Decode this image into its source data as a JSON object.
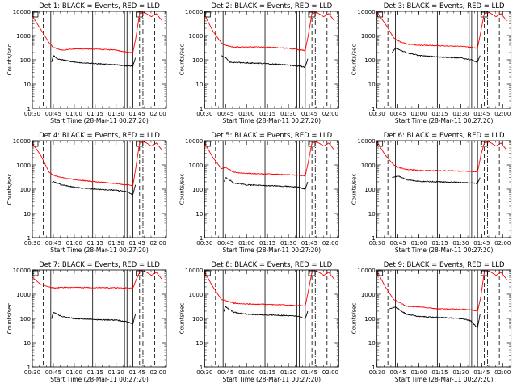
{
  "chart_data": [
    {
      "type": "line",
      "title": "Det 1:  BLACK = Events, RED = LLD",
      "series_names": [
        "BLACK = Events",
        "RED = LLD"
      ],
      "events": [
        [
          0.5,
          null
        ],
        [
          0.7,
          null
        ],
        [
          0.73,
          80
        ],
        [
          0.75,
          150
        ],
        [
          0.8,
          110
        ],
        [
          1.0,
          80
        ],
        [
          1.25,
          70
        ],
        [
          1.5,
          62
        ],
        [
          1.62,
          55
        ],
        [
          1.7,
          55
        ],
        [
          1.73,
          120
        ]
      ],
      "lld": [
        [
          0.5,
          6500
        ],
        [
          0.6,
          1800
        ],
        [
          0.7,
          500
        ],
        [
          0.75,
          320
        ],
        [
          0.85,
          250
        ],
        [
          1.0,
          280
        ],
        [
          1.25,
          280
        ],
        [
          1.5,
          250
        ],
        [
          1.62,
          210
        ],
        [
          1.7,
          200
        ],
        [
          1.74,
          1000
        ],
        [
          1.78,
          8000
        ],
        [
          1.84,
          9000
        ],
        [
          1.92,
          6000
        ],
        [
          1.98,
          8000
        ],
        [
          2.05,
          4000
        ]
      ]
    },
    {
      "type": "line",
      "title": "Det 2:  BLACK = Events, RED = LLD",
      "series_names": [
        "BLACK = Events",
        "RED = LLD"
      ],
      "events": [
        [
          0.5,
          null
        ],
        [
          0.68,
          null
        ],
        [
          0.7,
          150
        ],
        [
          0.75,
          120
        ],
        [
          0.8,
          80
        ],
        [
          1.0,
          75
        ],
        [
          1.25,
          70
        ],
        [
          1.5,
          60
        ],
        [
          1.62,
          55
        ],
        [
          1.7,
          50
        ],
        [
          1.73,
          110
        ]
      ],
      "lld": [
        [
          0.5,
          7000
        ],
        [
          0.6,
          1500
        ],
        [
          0.7,
          500
        ],
        [
          0.75,
          400
        ],
        [
          0.85,
          330
        ],
        [
          1.0,
          340
        ],
        [
          1.25,
          330
        ],
        [
          1.5,
          300
        ],
        [
          1.62,
          260
        ],
        [
          1.7,
          240
        ],
        [
          1.74,
          1200
        ],
        [
          1.78,
          8000
        ],
        [
          1.84,
          9000
        ],
        [
          1.92,
          6000
        ],
        [
          1.98,
          8000
        ],
        [
          2.05,
          4000
        ]
      ]
    },
    {
      "type": "line",
      "title": "Det 3:  BLACK = Events, RED = LLD",
      "series_names": [
        "BLACK = Events",
        "RED = LLD"
      ],
      "events": [
        [
          0.5,
          null
        ],
        [
          0.6,
          null
        ],
        [
          0.68,
          200
        ],
        [
          0.72,
          300
        ],
        [
          0.75,
          280
        ],
        [
          0.85,
          200
        ],
        [
          1.0,
          150
        ],
        [
          1.25,
          130
        ],
        [
          1.5,
          120
        ],
        [
          1.62,
          100
        ],
        [
          1.7,
          80
        ],
        [
          1.73,
          150
        ]
      ],
      "lld": [
        [
          0.5,
          9000
        ],
        [
          0.6,
          3000
        ],
        [
          0.7,
          800
        ],
        [
          0.75,
          600
        ],
        [
          0.85,
          450
        ],
        [
          1.0,
          400
        ],
        [
          1.25,
          380
        ],
        [
          1.5,
          360
        ],
        [
          1.62,
          330
        ],
        [
          1.7,
          300
        ],
        [
          1.74,
          1500
        ],
        [
          1.78,
          8000
        ],
        [
          1.84,
          9000
        ],
        [
          1.92,
          6000
        ],
        [
          1.98,
          8000
        ],
        [
          2.05,
          4000
        ]
      ]
    },
    {
      "type": "line",
      "title": "Det 4:  BLACK = Events, RED = LLD",
      "series_names": [
        "BLACK = Events",
        "RED = LLD"
      ],
      "events": [
        [
          0.5,
          null
        ],
        [
          0.7,
          null
        ],
        [
          0.73,
          180
        ],
        [
          0.75,
          200
        ],
        [
          0.85,
          150
        ],
        [
          1.0,
          120
        ],
        [
          1.25,
          100
        ],
        [
          1.5,
          90
        ],
        [
          1.62,
          80
        ],
        [
          1.7,
          60
        ],
        [
          1.73,
          150
        ]
      ],
      "lld": [
        [
          0.5,
          8000
        ],
        [
          0.6,
          2500
        ],
        [
          0.7,
          500
        ],
        [
          0.75,
          380
        ],
        [
          0.85,
          300
        ],
        [
          1.0,
          250
        ],
        [
          1.25,
          200
        ],
        [
          1.5,
          170
        ],
        [
          1.62,
          150
        ],
        [
          1.7,
          140
        ],
        [
          1.74,
          1000
        ],
        [
          1.78,
          8000
        ],
        [
          1.84,
          9000
        ],
        [
          1.92,
          6000
        ],
        [
          1.98,
          8000
        ],
        [
          2.05,
          4000
        ]
      ]
    },
    {
      "type": "line",
      "title": "Det 5:  BLACK = Events, RED = LLD",
      "series_names": [
        "BLACK = Events",
        "RED = LLD"
      ],
      "events": [
        [
          0.5,
          null
        ],
        [
          0.7,
          null
        ],
        [
          0.73,
          200
        ],
        [
          0.75,
          300
        ],
        [
          0.85,
          180
        ],
        [
          1.0,
          150
        ],
        [
          1.25,
          140
        ],
        [
          1.5,
          130
        ],
        [
          1.62,
          120
        ],
        [
          1.7,
          100
        ],
        [
          1.73,
          200
        ]
      ],
      "lld": [
        [
          0.5,
          8000
        ],
        [
          0.6,
          2000
        ],
        [
          0.7,
          700
        ],
        [
          0.75,
          800
        ],
        [
          0.85,
          500
        ],
        [
          1.0,
          450
        ],
        [
          1.25,
          420
        ],
        [
          1.5,
          400
        ],
        [
          1.62,
          370
        ],
        [
          1.7,
          350
        ],
        [
          1.74,
          1500
        ],
        [
          1.78,
          8000
        ],
        [
          1.84,
          9000
        ],
        [
          1.92,
          6000
        ],
        [
          1.98,
          8000
        ],
        [
          2.05,
          4000
        ]
      ]
    },
    {
      "type": "line",
      "title": "Det 6:  BLACK = Events, RED = LLD",
      "series_names": [
        "BLACK = Events",
        "RED = LLD"
      ],
      "events": [
        [
          0.5,
          null
        ],
        [
          0.65,
          null
        ],
        [
          0.68,
          300
        ],
        [
          0.75,
          350
        ],
        [
          0.85,
          250
        ],
        [
          1.0,
          210
        ],
        [
          1.25,
          200
        ],
        [
          1.5,
          190
        ],
        [
          1.62,
          180
        ],
        [
          1.7,
          170
        ],
        [
          1.73,
          300
        ]
      ],
      "lld": [
        [
          0.5,
          9000
        ],
        [
          0.6,
          2500
        ],
        [
          0.7,
          1000
        ],
        [
          0.75,
          800
        ],
        [
          0.85,
          650
        ],
        [
          1.0,
          600
        ],
        [
          1.25,
          580
        ],
        [
          1.5,
          560
        ],
        [
          1.62,
          540
        ],
        [
          1.7,
          520
        ],
        [
          1.74,
          2500
        ],
        [
          1.78,
          8000
        ],
        [
          1.84,
          9000
        ],
        [
          1.92,
          6000
        ],
        [
          1.98,
          8000
        ],
        [
          2.05,
          4000
        ]
      ]
    },
    {
      "type": "line",
      "title": "Det 7:  BLACK = Events, RED = LLD",
      "series_names": [
        "BLACK = Events",
        "RED = LLD"
      ],
      "events": [
        [
          0.5,
          null
        ],
        [
          0.7,
          null
        ],
        [
          0.73,
          100
        ],
        [
          0.75,
          180
        ],
        [
          0.85,
          120
        ],
        [
          1.0,
          100
        ],
        [
          1.25,
          90
        ],
        [
          1.5,
          85
        ],
        [
          1.62,
          75
        ],
        [
          1.7,
          60
        ],
        [
          1.73,
          150
        ]
      ],
      "lld": [
        [
          0.5,
          5000
        ],
        [
          0.6,
          2500
        ],
        [
          0.7,
          2000
        ],
        [
          0.75,
          1800
        ],
        [
          0.85,
          1900
        ],
        [
          1.0,
          1900
        ],
        [
          1.25,
          1850
        ],
        [
          1.5,
          1850
        ],
        [
          1.62,
          1800
        ],
        [
          1.7,
          1800
        ],
        [
          1.74,
          4000
        ],
        [
          1.78,
          8000
        ],
        [
          1.84,
          9000
        ],
        [
          1.92,
          6000
        ],
        [
          1.98,
          8000
        ],
        [
          2.05,
          4000
        ]
      ]
    },
    {
      "type": "line",
      "title": "Det 8:  BLACK = Events, RED = LLD",
      "series_names": [
        "BLACK = Events",
        "RED = LLD"
      ],
      "events": [
        [
          0.5,
          null
        ],
        [
          0.7,
          null
        ],
        [
          0.73,
          200
        ],
        [
          0.75,
          300
        ],
        [
          0.85,
          180
        ],
        [
          1.0,
          150
        ],
        [
          1.25,
          140
        ],
        [
          1.5,
          130
        ],
        [
          1.62,
          120
        ],
        [
          1.7,
          100
        ],
        [
          1.73,
          200
        ]
      ],
      "lld": [
        [
          0.5,
          8000
        ],
        [
          0.6,
          2000
        ],
        [
          0.7,
          600
        ],
        [
          0.75,
          550
        ],
        [
          0.85,
          430
        ],
        [
          1.0,
          400
        ],
        [
          1.25,
          380
        ],
        [
          1.5,
          360
        ],
        [
          1.62,
          340
        ],
        [
          1.7,
          330
        ],
        [
          1.74,
          1500
        ],
        [
          1.78,
          8000
        ],
        [
          1.84,
          9000
        ],
        [
          1.92,
          6000
        ],
        [
          1.98,
          8000
        ],
        [
          2.05,
          4000
        ]
      ]
    },
    {
      "type": "line",
      "title": "Det 9:  BLACK = Events, RED = LLD",
      "series_names": [
        "BLACK = Events",
        "RED = LLD"
      ],
      "events": [
        [
          0.5,
          null
        ],
        [
          0.62,
          null
        ],
        [
          0.65,
          250
        ],
        [
          0.72,
          300
        ],
        [
          0.85,
          150
        ],
        [
          1.0,
          120
        ],
        [
          1.25,
          110
        ],
        [
          1.5,
          100
        ],
        [
          1.62,
          80
        ],
        [
          1.7,
          40
        ],
        [
          1.73,
          150
        ]
      ],
      "lld": [
        [
          0.5,
          9000
        ],
        [
          0.6,
          2000
        ],
        [
          0.7,
          600
        ],
        [
          0.75,
          500
        ],
        [
          0.85,
          320
        ],
        [
          1.0,
          300
        ],
        [
          1.25,
          250
        ],
        [
          1.5,
          240
        ],
        [
          1.62,
          230
        ],
        [
          1.7,
          200
        ],
        [
          1.74,
          800
        ],
        [
          1.78,
          8000
        ],
        [
          1.84,
          9000
        ],
        [
          1.92,
          6000
        ],
        [
          1.98,
          8000
        ],
        [
          2.05,
          4000
        ]
      ]
    }
  ],
  "shared": {
    "x_tick_labels": [
      "00:30",
      "00:45",
      "01:00",
      "01:15",
      "01:30",
      "01:45",
      "02:00"
    ],
    "x_ticks_hours": [
      0.5,
      0.75,
      1.0,
      1.25,
      1.5,
      1.75,
      2.0
    ],
    "xlim_hours": [
      0.5,
      2.1
    ],
    "y_tick_labels": [
      "1",
      "10",
      "100",
      "1000",
      "10000"
    ],
    "ylim": [
      1,
      10000
    ],
    "y_scale": "log",
    "ylabel": "Counts/sec",
    "xlabel": "Start Time (28-Mar-11 00:27:20)",
    "colors": {
      "events": "#000000",
      "lld": "#ff0000",
      "axes": "#000000",
      "background": "#ffffff"
    }
  }
}
